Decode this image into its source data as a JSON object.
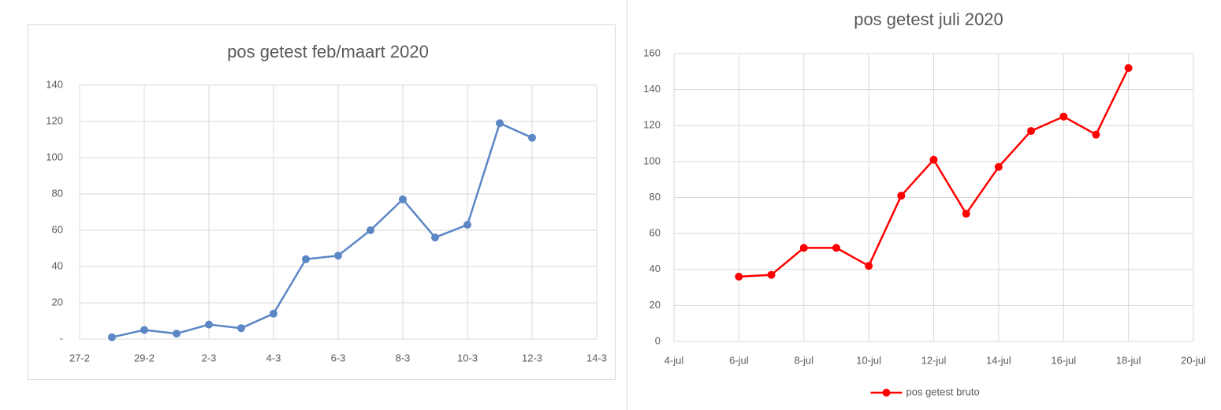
{
  "chart_data": [
    {
      "type": "line",
      "title": "pos getest feb/maart 2020",
      "x": [
        "28-2",
        "29-2",
        "1-3",
        "2-3",
        "3-3",
        "4-3",
        "5-3",
        "6-3",
        "7-3",
        "8-3",
        "9-3",
        "10-3",
        "11-3",
        "12-3"
      ],
      "values": [
        1,
        5,
        3,
        8,
        6,
        14,
        44,
        46,
        60,
        77,
        56,
        63,
        119,
        111
      ],
      "color": "#5b87c5",
      "xlim": [
        "27-2",
        "14-3"
      ],
      "xticks": [
        "27-2",
        "29-2",
        "2-3",
        "4-3",
        "6-3",
        "8-3",
        "10-3",
        "12-3",
        "14-3"
      ],
      "ylim": [
        0,
        140
      ],
      "yticks": [
        {
          "value": 0,
          "label": "-"
        },
        20,
        40,
        60,
        80,
        100,
        120,
        140
      ],
      "grid": true
    },
    {
      "type": "line",
      "title": "pos getest juli 2020",
      "x": [
        "6-jul",
        "7-jul",
        "8-jul",
        "9-jul",
        "10-jul",
        "11-jul",
        "12-jul",
        "13-jul",
        "14-jul",
        "15-jul",
        "16-jul",
        "17-jul",
        "18-jul"
      ],
      "series": [
        {
          "name": "pos getest bruto",
          "color": "#ff0000",
          "values": [
            36,
            37,
            52,
            52,
            42,
            81,
            101,
            71,
            97,
            117,
            125,
            115,
            152
          ]
        }
      ],
      "xlim": [
        "4-jul",
        "20-jul"
      ],
      "xticks": [
        "4-jul",
        "6-jul",
        "8-jul",
        "10-jul",
        "12-jul",
        "14-jul",
        "16-jul",
        "18-jul",
        "20-jul"
      ],
      "ylim": [
        0,
        160
      ],
      "yticks": [
        0,
        20,
        40,
        60,
        80,
        100,
        120,
        140,
        160
      ],
      "grid": true,
      "legend": "bottom"
    }
  ]
}
